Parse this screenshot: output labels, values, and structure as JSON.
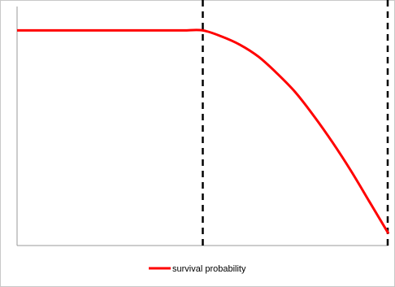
{
  "chart_data": {
    "type": "line",
    "title": "",
    "xlabel": "",
    "ylabel": "",
    "xlim": [
      0,
      1
    ],
    "ylim": [
      0,
      1
    ],
    "grid": false,
    "legend": {
      "position": "bottom-center"
    },
    "series": [
      {
        "name": "survival probability",
        "color": "#ff0000",
        "x": [
          0,
          0.1,
          0.2,
          0.3,
          0.4,
          0.45,
          0.5,
          0.55,
          0.6,
          0.65,
          0.7,
          0.75,
          0.8,
          0.85,
          0.9,
          0.95,
          1.0
        ],
        "y": [
          0.9,
          0.9,
          0.9,
          0.9,
          0.9,
          0.9,
          0.9,
          0.875,
          0.84,
          0.79,
          0.72,
          0.64,
          0.54,
          0.43,
          0.31,
          0.18,
          0.05
        ]
      }
    ],
    "reference_lines": [
      {
        "orientation": "vertical",
        "x": 0.5,
        "style": "dashed",
        "color": "#000000"
      },
      {
        "orientation": "vertical",
        "x": 1.0,
        "style": "dashed",
        "color": "#000000"
      }
    ]
  }
}
